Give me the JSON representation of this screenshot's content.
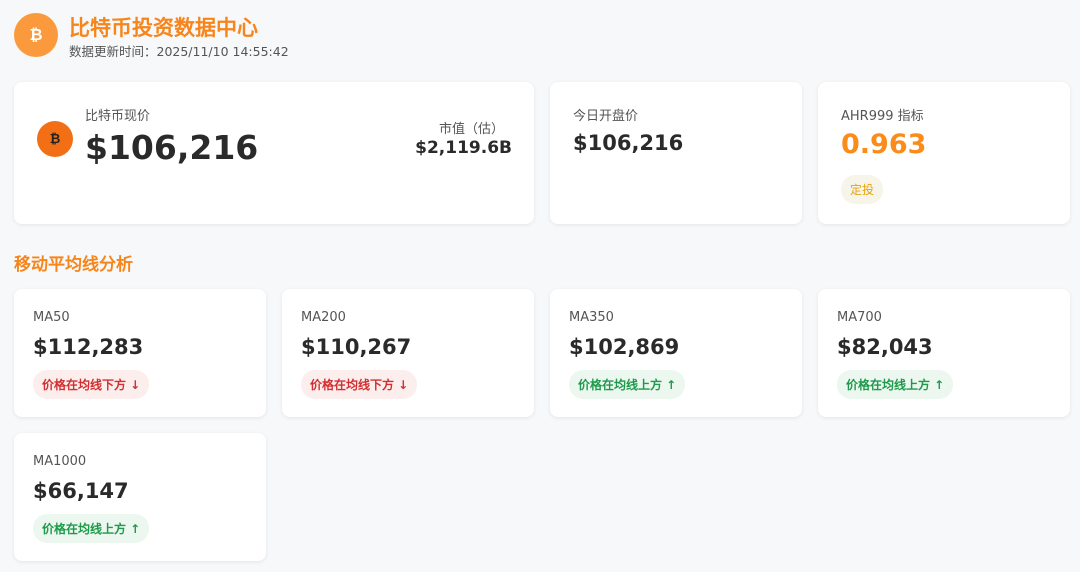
{
  "header": {
    "icon": "₿",
    "title": "比特币投资数据中心",
    "subtitle": "数据更新时间：2025/11/10 14:55:42"
  },
  "price_card": {
    "icon": "₿",
    "label": "比特币现价",
    "value": "$106,216",
    "market_cap_label": "市值（估）",
    "market_cap_value": "$2,119.6B"
  },
  "open_card": {
    "label": "今日开盘价",
    "value": "$106,216"
  },
  "ahr_card": {
    "label": "AHR999 指标",
    "value": "0.963",
    "badge": "定投"
  },
  "section_title": "移动平均线分析",
  "ma_cards": [
    {
      "name": "MA50",
      "value": "$112,283",
      "status": "价格在均线下方 ↓",
      "status_color": "#d32f2f",
      "status_bg": "#fdeeee"
    },
    {
      "name": "MA200",
      "value": "$110,267",
      "status": "价格在均线下方 ↓",
      "status_color": "#d32f2f",
      "status_bg": "#fdeeee"
    },
    {
      "name": "MA350",
      "value": "$102,869",
      "status": "价格在均线上方 ↑",
      "status_color": "#1e9a4a",
      "status_bg": "#ecf7f0"
    },
    {
      "name": "MA700",
      "value": "$82,043",
      "status": "价格在均线上方 ↑",
      "status_color": "#1e9a4a",
      "status_bg": "#ecf7f0"
    },
    {
      "name": "MA1000",
      "value": "$66,147",
      "status": "价格在均线上方 ↑",
      "status_color": "#1e9a4a",
      "status_bg": "#ecf7f0"
    }
  ]
}
